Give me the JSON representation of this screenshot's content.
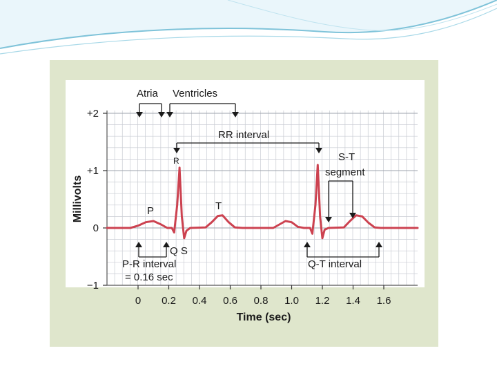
{
  "colors": {
    "frame_bg": "#dfe6cc",
    "plot_bg": "#ffffff",
    "grid_minor": "#c9ccd3",
    "grid_major": "#9ea3ac",
    "trace": "#cc4250",
    "arrow": "#1a1a1a",
    "header_wave": "#7fc3d9"
  },
  "figure": {
    "y_axis_label": "Millivolts",
    "x_axis_label": "Time (sec)",
    "y_ticks": [
      {
        "value": 2,
        "label": "+2"
      },
      {
        "value": 1,
        "label": "+1"
      },
      {
        "value": 0,
        "label": "0"
      },
      {
        "value": -1,
        "label": "−1"
      }
    ],
    "x_ticks": [
      {
        "value": 0,
        "label": "0"
      },
      {
        "value": 0.2,
        "label": "0.2"
      },
      {
        "value": 0.4,
        "label": "0.4"
      },
      {
        "value": 0.6,
        "label": "0.6"
      },
      {
        "value": 0.8,
        "label": "0.8"
      },
      {
        "value": 1.0,
        "label": "1.0"
      },
      {
        "value": 1.2,
        "label": "1.2"
      },
      {
        "value": 1.4,
        "label": "1.4"
      },
      {
        "value": 1.6,
        "label": "1.6"
      }
    ],
    "x_range": [
      -0.4,
      1.8
    ],
    "y_range": [
      -1,
      2
    ],
    "labels": {
      "atria": "Atria",
      "ventricles": "Ventricles",
      "rr_interval": "RR interval",
      "r": "R",
      "p": "P",
      "t": "T",
      "qs": "Q S",
      "st_segment_line1": "S-T",
      "st_segment_line2": "segment",
      "pr_interval_line1": "P-R interval",
      "pr_interval_line2": "= 0.16 sec",
      "qt_interval": "Q-T interval"
    },
    "trace": [
      [
        -0.43,
        0
      ],
      [
        -0.05,
        0
      ],
      [
        0.0,
        0.04
      ],
      [
        0.05,
        0.1
      ],
      [
        0.1,
        0.12
      ],
      [
        0.15,
        0.06
      ],
      [
        0.19,
        0
      ],
      [
        0.22,
        0.0
      ],
      [
        0.235,
        -0.08
      ],
      [
        0.255,
        0.4
      ],
      [
        0.27,
        1.05
      ],
      [
        0.285,
        0.2
      ],
      [
        0.3,
        -0.18
      ],
      [
        0.315,
        -0.05
      ],
      [
        0.34,
        0
      ],
      [
        0.44,
        0.01
      ],
      [
        0.48,
        0.1
      ],
      [
        0.52,
        0.21
      ],
      [
        0.55,
        0.22
      ],
      [
        0.59,
        0.1
      ],
      [
        0.63,
        0.01
      ],
      [
        0.68,
        0
      ],
      [
        0.88,
        0
      ],
      [
        0.92,
        0.06
      ],
      [
        0.96,
        0.12
      ],
      [
        1.0,
        0.1
      ],
      [
        1.04,
        0.02
      ],
      [
        1.08,
        0
      ],
      [
        1.12,
        0.0
      ],
      [
        1.135,
        -0.1
      ],
      [
        1.155,
        0.4
      ],
      [
        1.17,
        1.1
      ],
      [
        1.185,
        0.2
      ],
      [
        1.2,
        -0.18
      ],
      [
        1.215,
        -0.03
      ],
      [
        1.24,
        0
      ],
      [
        1.34,
        0.01
      ],
      [
        1.38,
        0.12
      ],
      [
        1.42,
        0.22
      ],
      [
        1.46,
        0.2
      ],
      [
        1.5,
        0.09
      ],
      [
        1.54,
        0.01
      ],
      [
        1.58,
        0
      ],
      [
        1.82,
        0
      ]
    ]
  }
}
